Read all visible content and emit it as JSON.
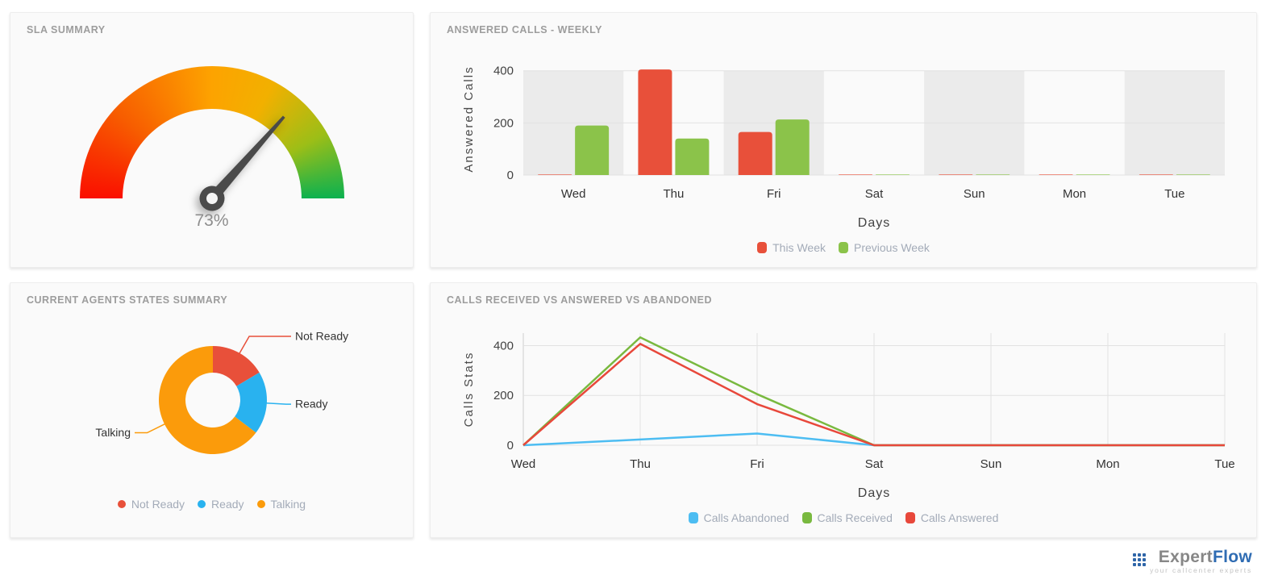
{
  "chart_data": [
    {
      "type": "gauge",
      "title": "SLA SUMMARY",
      "value": 73,
      "unit": "%",
      "label": "73%",
      "range": [
        0,
        100
      ],
      "gradient_colors": [
        "#fa0f00",
        "#fda300",
        "#0cb14f"
      ],
      "needle_color": "#4a4a4a"
    },
    {
      "type": "bar",
      "title": "ANSWERED CALLS - WEEKLY",
      "categories": [
        "Wed",
        "Thu",
        "Fri",
        "Sat",
        "Sun",
        "Mon",
        "Tue"
      ],
      "series": [
        {
          "name": "This Week",
          "color": "#e8503a",
          "values": [
            2,
            405,
            165,
            2,
            2,
            2,
            2
          ]
        },
        {
          "name": "Previous Week",
          "color": "#8bc34a",
          "values": [
            190,
            140,
            213,
            2,
            2,
            2,
            2
          ]
        }
      ],
      "xlabel": "Days",
      "ylabel": "Answered Calls",
      "yticks": [
        0,
        200,
        400
      ],
      "ylim": [
        0,
        430
      ],
      "band_color": "#ebebeb",
      "band_top": 400,
      "legend_position": "bottom"
    },
    {
      "type": "pie",
      "title": "CURRENT AGENTS STATES SUMMARY",
      "donut": true,
      "slices": [
        {
          "label": "Not Ready",
          "percent": 16.5,
          "color": "#e8503a"
        },
        {
          "label": "Ready",
          "percent": 18.8,
          "color": "#29b2ef"
        },
        {
          "label": "Talking",
          "percent": 64.7,
          "color": "#fb9b0b"
        }
      ],
      "legend_position": "bottom"
    },
    {
      "type": "line",
      "title": "CALLS RECEIVED VS ANSWERED VS ABANDONED",
      "x": [
        "Wed",
        "Thu",
        "Fri",
        "Sat",
        "Sun",
        "Mon",
        "Tue"
      ],
      "series": [
        {
          "name": "Calls Abandoned",
          "color": "#4dbdf2",
          "values": [
            0,
            23,
            47,
            0,
            0,
            0,
            0
          ]
        },
        {
          "name": "Calls Received",
          "color": "#79b93f",
          "values": [
            0,
            433,
            205,
            0,
            0,
            0,
            0
          ]
        },
        {
          "name": "Calls Answered",
          "color": "#e8483b",
          "values": [
            0,
            407,
            165,
            0,
            0,
            0,
            0
          ]
        }
      ],
      "xlabel": "Days",
      "ylabel": "Calls Stats",
      "yticks": [
        0,
        200,
        400
      ],
      "ylim": [
        0,
        450
      ],
      "grid": true,
      "legend_position": "bottom"
    }
  ],
  "footer": {
    "brand_gray": "Expert",
    "brand_blue": "Flow",
    "tagline": "your callcenter experts"
  }
}
